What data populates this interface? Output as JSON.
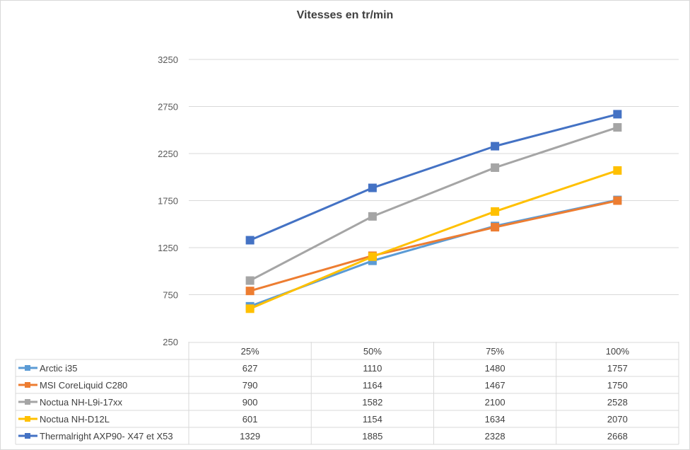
{
  "chart_data": {
    "type": "line",
    "title": "Vitesses en tr/min",
    "categories": [
      "25%",
      "50%",
      "75%",
      "100%"
    ],
    "y_ticks": [
      "250",
      "750",
      "1250",
      "1750",
      "2250",
      "2750",
      "3250"
    ],
    "ylim": [
      250,
      3250
    ],
    "grid": true,
    "legend": "data-table-below",
    "series": [
      {
        "name": "Arctic i35",
        "color": "#5b9bd5",
        "values": [
          627,
          1110,
          1480,
          1757
        ]
      },
      {
        "name": "MSI CoreLiquid C280",
        "color": "#ed7d31",
        "values": [
          790,
          1164,
          1467,
          1750
        ]
      },
      {
        "name": "Noctua NH-L9i-17xx",
        "color": "#a5a5a5",
        "values": [
          900,
          1582,
          2100,
          2528
        ]
      },
      {
        "name": "Noctua NH-D12L",
        "color": "#ffc000",
        "values": [
          601,
          1154,
          1634,
          2070
        ]
      },
      {
        "name": "Thermalright AXP90- X47 et X53",
        "color": "#4472c4",
        "values": [
          1329,
          1885,
          2328,
          2668
        ]
      }
    ]
  }
}
